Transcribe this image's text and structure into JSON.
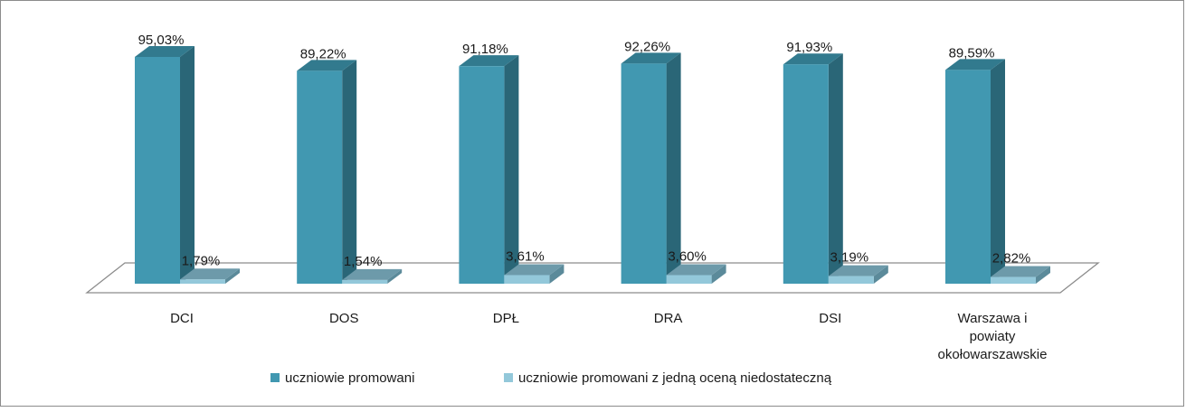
{
  "chart_data": {
    "type": "bar",
    "categories": [
      "DCI",
      "DOS",
      "DPŁ",
      "DRA",
      "DSI",
      "Warszawa i powiaty okołowarszawskie"
    ],
    "category_lines": [
      [
        "DCI"
      ],
      [
        "DOS"
      ],
      [
        "DPŁ"
      ],
      [
        "DRA"
      ],
      [
        "DSI"
      ],
      [
        "Warszawa i",
        "powiaty",
        "okołowarszawskie"
      ]
    ],
    "series": [
      {
        "name": "uczniowie promowani",
        "values": [
          95.03,
          89.22,
          91.18,
          92.26,
          91.93,
          89.59
        ],
        "labels": [
          "95,03%",
          "89,22%",
          "91,18%",
          "92,26%",
          "91,93%",
          "89,59%"
        ]
      },
      {
        "name": "uczniowie promowani z jedną oceną niedostateczną",
        "values": [
          1.79,
          1.54,
          3.61,
          3.6,
          3.19,
          2.82
        ],
        "labels": [
          "1,79%",
          "1,54%",
          "3,61%",
          "3,60%",
          "3,19%",
          "2,82%"
        ]
      }
    ],
    "colors": {
      "series1_front": "#4198b1",
      "series1_side": "#2a6677",
      "series1_top": "#327a8e",
      "series2_front": "#93c8da",
      "series2_side": "#5b8a9a",
      "series2_top": "#6d9aaa"
    },
    "ylim": [
      0,
      100
    ],
    "grid": false,
    "legend_position": "bottom"
  }
}
